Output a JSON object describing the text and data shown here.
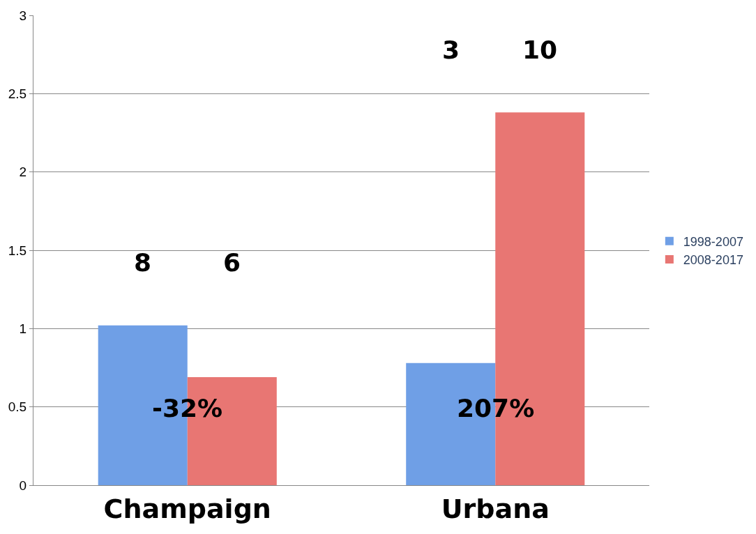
{
  "chart_data": {
    "type": "bar",
    "categories": [
      "Champaign",
      "Urbana"
    ],
    "series": [
      {
        "name": "1998-2007",
        "color": "#6f9fe6",
        "values": [
          1.02,
          0.78
        ]
      },
      {
        "name": "2008-2017",
        "color": "#e87673",
        "values": [
          0.69,
          2.38
        ]
      }
    ],
    "ylim": [
      0,
      3
    ],
    "yticks": [
      0,
      0.5,
      1,
      1.5,
      2,
      2.5,
      3
    ],
    "grid": "y",
    "legend": "right",
    "annotations": [
      "8",
      "6",
      "3",
      "10",
      "-32%",
      "207%"
    ]
  }
}
